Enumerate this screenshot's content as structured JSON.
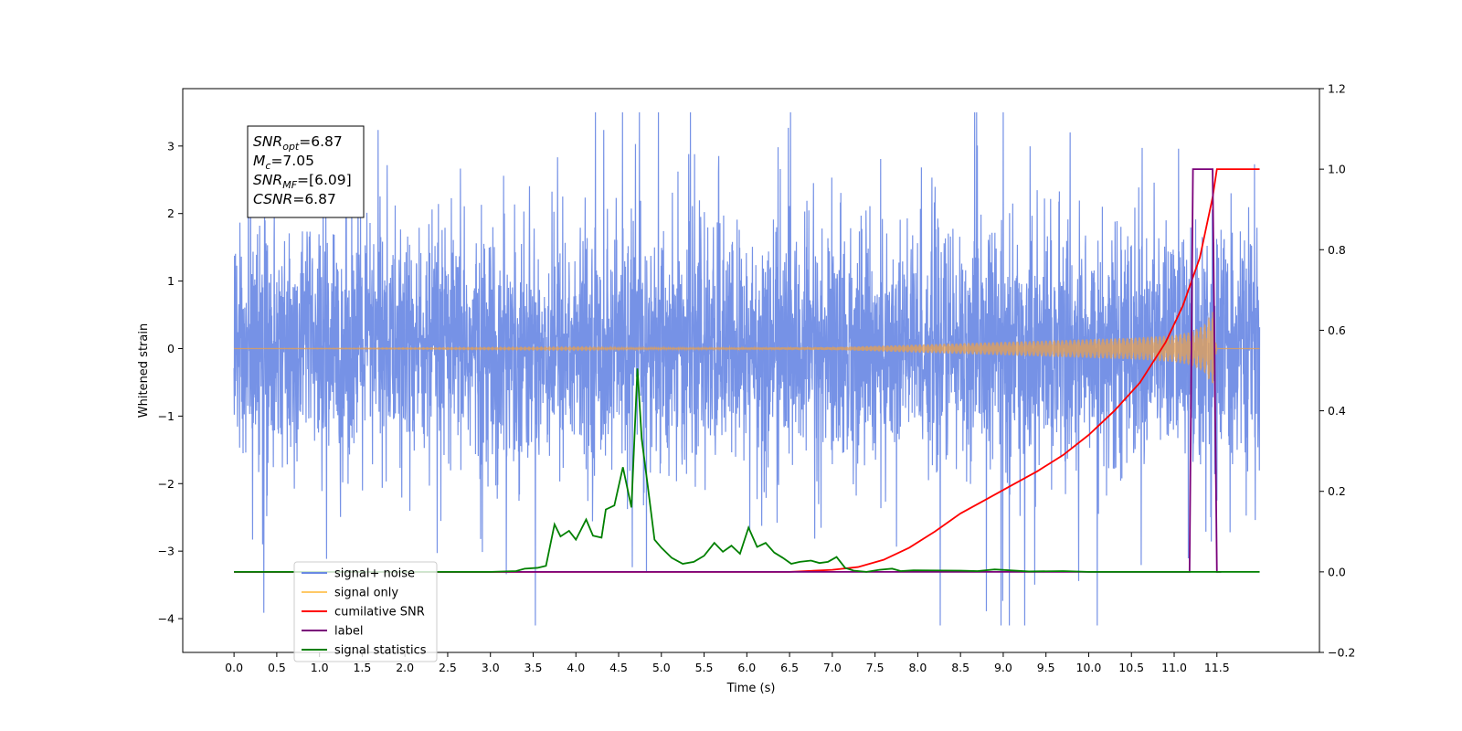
{
  "chart_data": {
    "type": "line",
    "title": "",
    "xlabel": "Time (s)",
    "ylabel": "Whitened strain",
    "y2label": "",
    "xlim": [
      -0.6,
      12.7
    ],
    "ylim": [
      -4.5,
      3.85
    ],
    "y2lim": [
      -0.2,
      1.2
    ],
    "x_ticks": [
      0.0,
      0.5,
      1.0,
      1.5,
      2.0,
      2.5,
      3.0,
      3.5,
      4.0,
      4.5,
      5.0,
      5.5,
      6.0,
      6.5,
      7.0,
      7.5,
      8.0,
      8.5,
      9.0,
      9.5,
      10.0,
      10.5,
      11.0,
      11.5
    ],
    "x_tick_labels": [
      "0.0",
      "0.5",
      "1.0",
      "1.5",
      "2.0",
      "2.5",
      "3.0",
      "3.5",
      "4.0",
      "4.5",
      "5.0",
      "5.5",
      "6.0",
      "6.5",
      "7.0",
      "7.5",
      "8.0",
      "8.5",
      "9.0",
      "9.5",
      "10.0",
      "10.5",
      "11.0",
      "11.5"
    ],
    "y_ticks": [
      -4,
      -3,
      -2,
      -1,
      0,
      1,
      2,
      3
    ],
    "y_tick_labels": [
      "−4",
      "−3",
      "−2",
      "−1",
      "0",
      "1",
      "2",
      "3"
    ],
    "y2_ticks": [
      -0.2,
      0.0,
      0.2,
      0.4,
      0.6,
      0.8,
      1.0,
      1.2
    ],
    "y2_tick_labels": [
      "−0.2",
      "0.0",
      "0.2",
      "0.4",
      "0.6",
      "0.8",
      "1.0",
      "1.2"
    ],
    "grid": false,
    "legend_position": "lower-left",
    "series": [
      {
        "name": "signal+ noise",
        "color": "#6a89e4",
        "axis": "left",
        "render": "noise",
        "description_values": {
          "x_start": 0.0,
          "x_end": 12.0,
          "spread": 1.9,
          "max": 3.5,
          "min": -4.1
        }
      },
      {
        "name": "signal only",
        "color": "#e8a050",
        "axis": "left",
        "render": "chirp",
        "envelope": {
          "x": [
            0.0,
            5.0,
            7.0,
            7.5,
            8.0,
            8.5,
            9.0,
            9.5,
            10.0,
            10.5,
            11.0,
            11.2,
            11.35,
            11.45,
            11.5
          ],
          "y": [
            0.0,
            0.01,
            0.02,
            0.04,
            0.06,
            0.08,
            0.1,
            0.12,
            0.14,
            0.16,
            0.2,
            0.25,
            0.35,
            0.55,
            0.0
          ]
        }
      },
      {
        "name": "cumilative SNR",
        "color": "#ff0000",
        "axis": "right",
        "x": [
          0.0,
          6.5,
          7.0,
          7.3,
          7.6,
          7.9,
          8.2,
          8.5,
          8.8,
          9.1,
          9.4,
          9.7,
          10.0,
          10.3,
          10.6,
          10.9,
          11.1,
          11.3,
          11.45,
          11.5,
          12.0
        ],
        "y": [
          0.0,
          0.0,
          0.005,
          0.012,
          0.03,
          0.06,
          0.1,
          0.145,
          0.18,
          0.215,
          0.25,
          0.29,
          0.34,
          0.4,
          0.47,
          0.57,
          0.66,
          0.78,
          0.93,
          1.0,
          1.0
        ]
      },
      {
        "name": "label",
        "color": "#7a007a",
        "axis": "right",
        "x": [
          0.0,
          11.1,
          11.18,
          11.22,
          11.45,
          11.5,
          11.55
        ],
        "y": [
          0.0,
          0.0,
          0.0,
          1.0,
          1.0,
          0.0,
          0.0
        ]
      },
      {
        "name": "signal statistics",
        "color": "#008000",
        "axis": "right",
        "x": [
          0.0,
          3.0,
          3.3,
          3.4,
          3.55,
          3.65,
          3.75,
          3.82,
          3.92,
          4.0,
          4.12,
          4.2,
          4.3,
          4.35,
          4.45,
          4.55,
          4.65,
          4.72,
          4.77,
          4.84,
          4.92,
          5.0,
          5.12,
          5.25,
          5.38,
          5.5,
          5.62,
          5.72,
          5.82,
          5.92,
          6.02,
          6.12,
          6.22,
          6.32,
          6.42,
          6.52,
          6.62,
          6.75,
          6.85,
          6.95,
          7.05,
          7.15,
          7.25,
          7.4,
          7.55,
          7.7,
          7.8,
          7.95,
          8.5,
          8.7,
          8.9,
          9.3,
          9.7,
          10.0,
          12.0
        ],
        "y": [
          0.0,
          0.0,
          0.002,
          0.008,
          0.01,
          0.015,
          0.118,
          0.088,
          0.102,
          0.08,
          0.13,
          0.09,
          0.085,
          0.155,
          0.165,
          0.26,
          0.16,
          0.505,
          0.33,
          0.215,
          0.08,
          0.06,
          0.035,
          0.02,
          0.025,
          0.04,
          0.072,
          0.05,
          0.065,
          0.045,
          0.11,
          0.062,
          0.072,
          0.048,
          0.035,
          0.02,
          0.025,
          0.028,
          0.022,
          0.025,
          0.037,
          0.01,
          0.003,
          0.0,
          0.005,
          0.008,
          0.002,
          0.004,
          0.003,
          0.002,
          0.006,
          0.001,
          0.002,
          0.0,
          0.0
        ]
      }
    ],
    "legend": [
      {
        "label": "signal+ noise",
        "color": "#6a89e4"
      },
      {
        "label": "signal only",
        "color": "#ffc966"
      },
      {
        "label": "cumilative SNR",
        "color": "#ff0000"
      },
      {
        "label": "label",
        "color": "#7a007a"
      },
      {
        "label": "signal statistics",
        "color": "#008000"
      }
    ],
    "annotation": {
      "lines": [
        {
          "base": "SNR",
          "sub": "opt",
          "rest": "=6.87"
        },
        {
          "base": "M",
          "sub": "c",
          "rest": "=7.05"
        },
        {
          "base": "SNR",
          "sub": "MF",
          "rest": "=[6.09]"
        },
        {
          "base": "CSNR",
          "sub": "",
          "rest": "=6.87"
        }
      ]
    }
  }
}
